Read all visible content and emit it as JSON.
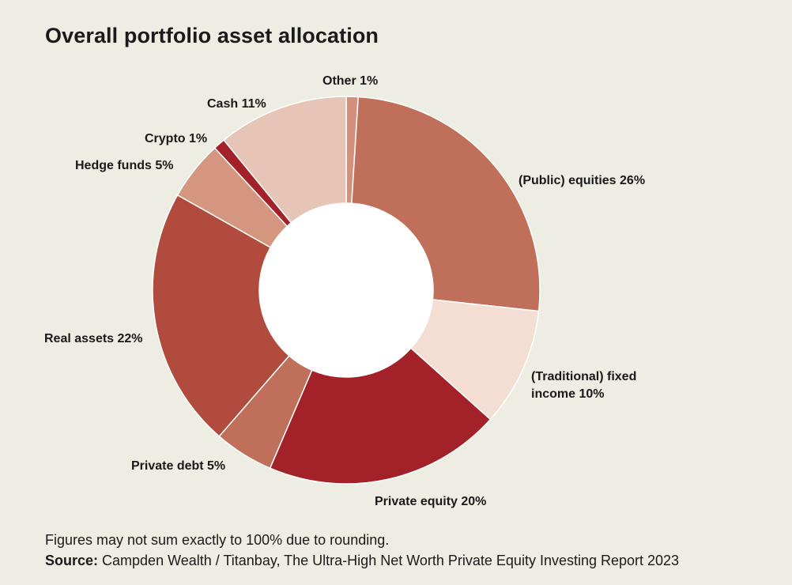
{
  "chart_data": {
    "type": "pie",
    "title": "Overall portfolio asset allocation",
    "donut": true,
    "slices": [
      {
        "label": "Other",
        "value": 1,
        "value_label": "1%",
        "color": "#d4907c"
      },
      {
        "label": "(Public) equities",
        "value": 26,
        "value_label": "26%",
        "color": "#c0705a"
      },
      {
        "label": "(Traditional) fixed income",
        "value": 10,
        "value_label": "10%",
        "color": "#f4ded3"
      },
      {
        "label": "Private equity",
        "value": 20,
        "value_label": "20%",
        "color": "#a32128"
      },
      {
        "label": "Private debt",
        "value": 5,
        "value_label": "5%",
        "color": "#c0705a"
      },
      {
        "label": "Real assets",
        "value": 22,
        "value_label": "22%",
        "color": "#b04b3e"
      },
      {
        "label": "Hedge funds",
        "value": 5,
        "value_label": "5%",
        "color": "#d4967f"
      },
      {
        "label": "Crypto",
        "value": 1,
        "value_label": "1%",
        "color": "#a32128"
      },
      {
        "label": "Cash",
        "value": 11,
        "value_label": "11%",
        "color": "#e6c5b6"
      }
    ]
  },
  "footnote": "Figures may not sum exactly to 100% due to rounding.",
  "source": {
    "label": "Source:",
    "text": " Campden Wealth / Titanbay, The Ultra-High Net Worth Private Equity Investing Report 2023"
  }
}
